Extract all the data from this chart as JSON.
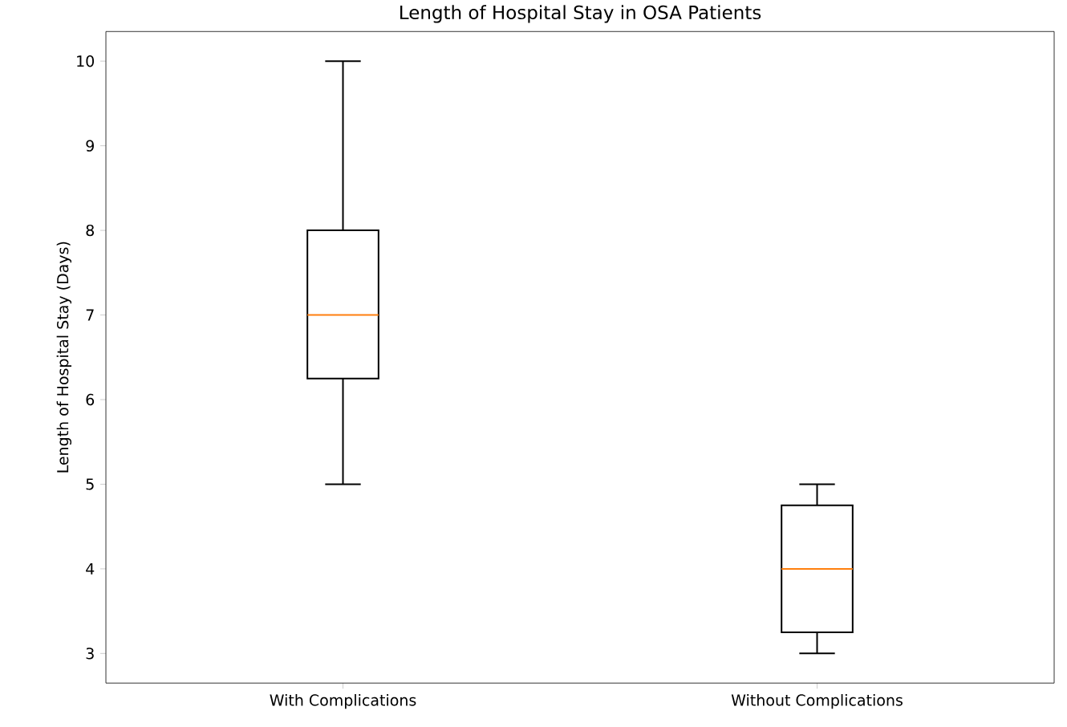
{
  "chart_data": {
    "type": "box",
    "title": "Length of Hospital Stay in OSA Patients",
    "ylabel": "Length of Hospital Stay (Days)",
    "categories": [
      "With Complications",
      "Without Complications"
    ],
    "boxes": [
      {
        "low": 5,
        "q1": 6.25,
        "median": 7,
        "q3": 8,
        "high": 10
      },
      {
        "low": 3,
        "q1": 3.25,
        "median": 4,
        "q3": 4.75,
        "high": 5
      }
    ],
    "color": "#000000",
    "ylim": [
      2.65,
      10.35
    ],
    "yticks": [
      3,
      4,
      5,
      6,
      7,
      8,
      9,
      10
    ]
  }
}
